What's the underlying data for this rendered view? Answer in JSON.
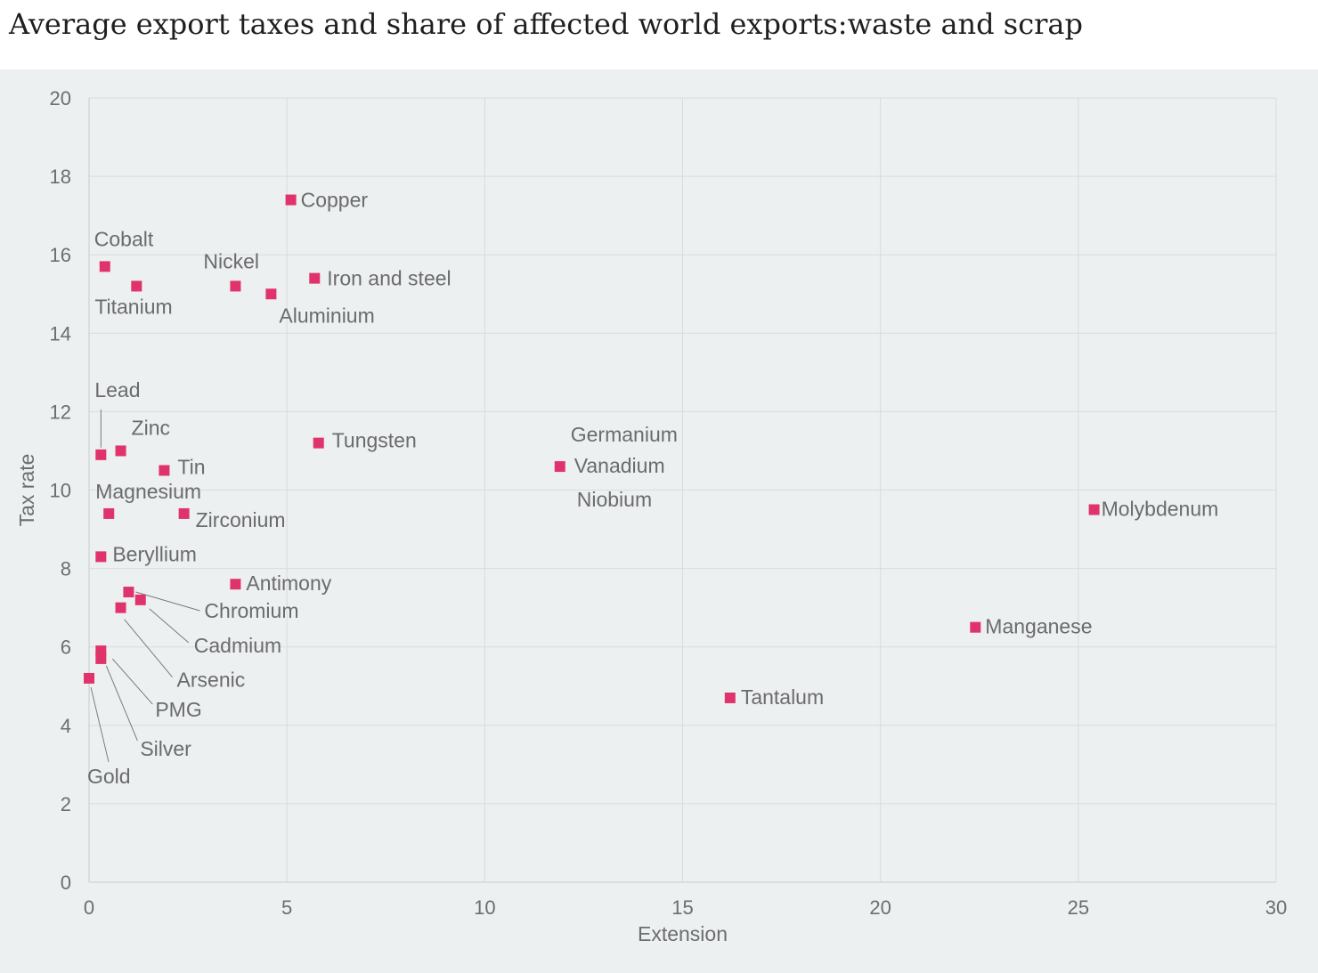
{
  "title": "Average export taxes and share of  affected world exports:waste and scrap",
  "chart_data": {
    "type": "scatter",
    "title": "Average export taxes and share of  affected world exports:waste and scrap",
    "xlabel": "Extension",
    "ylabel": "Tax rate",
    "xlim": [
      0,
      30
    ],
    "ylim": [
      0,
      20
    ],
    "xticks": [
      "0",
      "5",
      "10",
      "15",
      "20",
      "25",
      "30"
    ],
    "yticks": [
      "0",
      "2",
      "4",
      "6",
      "8",
      "10",
      "12",
      "14",
      "16",
      "18",
      "20"
    ],
    "grid": true,
    "marker_color": "#e0336c",
    "points": [
      {
        "label": "Copper",
        "x": 5.1,
        "y": 17.4
      },
      {
        "label": "Cobalt",
        "x": 0.4,
        "y": 15.7
      },
      {
        "label": "Titanium",
        "x": 1.2,
        "y": 15.2
      },
      {
        "label": "Nickel",
        "x": 3.7,
        "y": 15.2
      },
      {
        "label": "Aluminium",
        "x": 4.6,
        "y": 15.0
      },
      {
        "label": "Iron and steel",
        "x": 5.7,
        "y": 15.4
      },
      {
        "label": "Lead",
        "x": 0.3,
        "y": 10.9
      },
      {
        "label": "Zinc",
        "x": 0.8,
        "y": 11.0
      },
      {
        "label": "Tin",
        "x": 1.9,
        "y": 10.5
      },
      {
        "label": "Tungsten",
        "x": 5.8,
        "y": 11.2
      },
      {
        "label": "Germanium",
        "x": 11.9,
        "y": 10.6
      },
      {
        "label": "Vanadium",
        "x": 11.9,
        "y": 10.6
      },
      {
        "label": "Niobium",
        "x": 11.9,
        "y": 10.6
      },
      {
        "label": "Magnesium",
        "x": 0.5,
        "y": 9.4
      },
      {
        "label": "Zirconium",
        "x": 2.4,
        "y": 9.4
      },
      {
        "label": "Molybdenum",
        "x": 25.4,
        "y": 9.5
      },
      {
        "label": "Beryllium",
        "x": 0.3,
        "y": 8.3
      },
      {
        "label": "Antimony",
        "x": 3.7,
        "y": 7.6
      },
      {
        "label": "Chromium",
        "x": 1.0,
        "y": 7.4
      },
      {
        "label": "Cadmium",
        "x": 1.3,
        "y": 7.2
      },
      {
        "label": "Arsenic",
        "x": 0.8,
        "y": 7.0
      },
      {
        "label": "Manganese",
        "x": 22.4,
        "y": 6.5
      },
      {
        "label": "PMG",
        "x": 0.3,
        "y": 5.9
      },
      {
        "label": "Silver",
        "x": 0.3,
        "y": 5.7
      },
      {
        "label": "Gold",
        "x": 0.0,
        "y": 5.2
      },
      {
        "label": "Tantalum",
        "x": 16.2,
        "y": 4.7
      }
    ]
  }
}
